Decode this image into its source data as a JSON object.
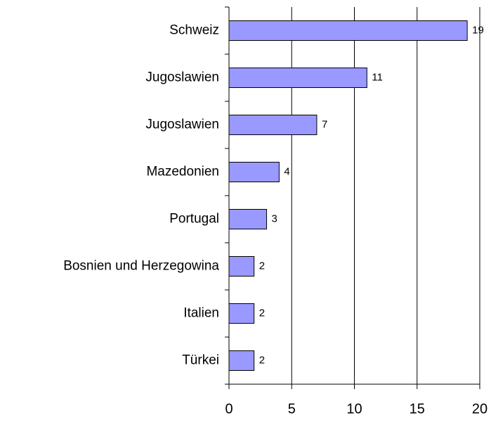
{
  "chart_data": {
    "type": "barh",
    "categories": [
      "Schweiz",
      "Jugoslawien",
      "Jugoslawien",
      "Mazedonien",
      "Portugal",
      "Bosnien und Herzegowina",
      "Italien",
      "Türkei"
    ],
    "values": [
      19,
      11,
      7,
      4,
      3,
      2,
      2,
      2
    ],
    "color": "#9999ff",
    "xlim": [
      0,
      20
    ],
    "xticks": [
      0,
      5,
      10,
      15,
      20
    ],
    "grid": true
  }
}
